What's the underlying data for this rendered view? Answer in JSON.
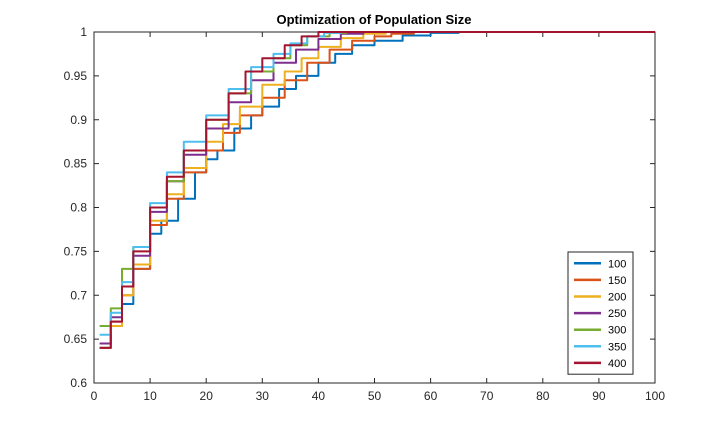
{
  "chart_data": {
    "type": "line",
    "title": "Optimization of Population Size",
    "xlabel": "",
    "ylabel": "",
    "xlim": [
      0,
      100
    ],
    "ylim": [
      0.6,
      1
    ],
    "xticks": [
      0,
      10,
      20,
      30,
      40,
      50,
      60,
      70,
      80,
      90,
      100
    ],
    "yticks": [
      0.6,
      0.65,
      0.7,
      0.75,
      0.8,
      0.85,
      0.9,
      0.95,
      1
    ],
    "xtick_labels": [
      "0",
      "10",
      "20",
      "30",
      "40",
      "50",
      "60",
      "70",
      "80",
      "90",
      "100"
    ],
    "ytick_labels": [
      "0.6",
      "0.65",
      "0.7",
      "0.75",
      "0.8",
      "0.85",
      "0.9",
      "0.95",
      "1"
    ],
    "grid": false,
    "legend_position": "bottom-right",
    "series": [
      {
        "name": "100",
        "color": "#0072BD",
        "x": [
          1,
          3,
          5,
          7,
          10,
          12,
          15,
          18,
          20,
          22,
          25,
          28,
          30,
          33,
          36,
          40,
          43,
          46,
          50,
          55,
          60,
          65,
          100
        ],
        "y": [
          0.64,
          0.665,
          0.69,
          0.73,
          0.77,
          0.785,
          0.81,
          0.84,
          0.855,
          0.865,
          0.89,
          0.905,
          0.915,
          0.935,
          0.95,
          0.965,
          0.975,
          0.985,
          0.99,
          0.996,
          0.999,
          1.0,
          1.0
        ]
      },
      {
        "name": "150",
        "color": "#D95319",
        "x": [
          1,
          3,
          5,
          7,
          10,
          13,
          16,
          20,
          23,
          26,
          30,
          34,
          38,
          42,
          46,
          50,
          53,
          57,
          100
        ],
        "y": [
          0.64,
          0.67,
          0.7,
          0.73,
          0.78,
          0.81,
          0.84,
          0.865,
          0.885,
          0.905,
          0.925,
          0.945,
          0.965,
          0.98,
          0.99,
          0.995,
          0.998,
          1.0,
          1.0
        ]
      },
      {
        "name": "200",
        "color": "#EDB120",
        "x": [
          1,
          3,
          5,
          7,
          10,
          13,
          16,
          20,
          23,
          26,
          30,
          34,
          37,
          40,
          44,
          48,
          52,
          100
        ],
        "y": [
          0.64,
          0.665,
          0.7,
          0.735,
          0.785,
          0.815,
          0.845,
          0.875,
          0.895,
          0.915,
          0.94,
          0.955,
          0.97,
          0.983,
          0.993,
          0.998,
          1.0,
          1.0
        ]
      },
      {
        "name": "250",
        "color": "#7E2F8E",
        "x": [
          1,
          3,
          5,
          7,
          10,
          13,
          16,
          20,
          24,
          28,
          32,
          36,
          40,
          44,
          48,
          100
        ],
        "y": [
          0.645,
          0.675,
          0.71,
          0.745,
          0.795,
          0.83,
          0.86,
          0.89,
          0.92,
          0.945,
          0.965,
          0.98,
          0.992,
          0.998,
          1.0,
          1.0
        ]
      },
      {
        "name": "300",
        "color": "#77AC30",
        "x": [
          1,
          3,
          5,
          7,
          10,
          13,
          16,
          20,
          24,
          28,
          32,
          35,
          38,
          42,
          45,
          100
        ],
        "y": [
          0.665,
          0.685,
          0.73,
          0.755,
          0.8,
          0.83,
          0.865,
          0.9,
          0.93,
          0.955,
          0.97,
          0.985,
          0.995,
          0.999,
          1.0,
          1.0
        ]
      },
      {
        "name": "350",
        "color": "#4DBEEE",
        "x": [
          1,
          3,
          5,
          7,
          10,
          13,
          16,
          20,
          24,
          28,
          32,
          35,
          38,
          41,
          44,
          100
        ],
        "y": [
          0.655,
          0.68,
          0.715,
          0.755,
          0.805,
          0.84,
          0.875,
          0.905,
          0.935,
          0.96,
          0.975,
          0.987,
          0.995,
          0.999,
          1.0,
          1.0
        ]
      },
      {
        "name": "400",
        "color": "#A2142F",
        "x": [
          1,
          3,
          5,
          7,
          10,
          13,
          16,
          20,
          24,
          27,
          30,
          34,
          37,
          40,
          43,
          46,
          100
        ],
        "y": [
          0.64,
          0.67,
          0.71,
          0.75,
          0.8,
          0.835,
          0.865,
          0.9,
          0.93,
          0.955,
          0.97,
          0.985,
          0.995,
          1.0,
          1.0,
          1.0,
          1.0
        ]
      }
    ]
  }
}
